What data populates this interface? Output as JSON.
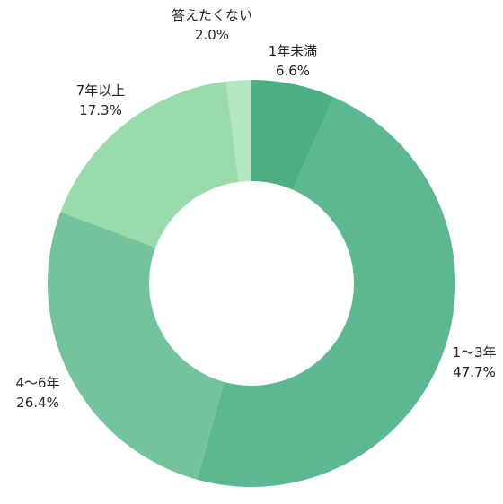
{
  "chart_data": {
    "type": "pie",
    "variant": "donut",
    "title": "",
    "slices": [
      {
        "label": "1年未満",
        "value": 6.6,
        "value_label": "6.6%",
        "color": "#4caf84"
      },
      {
        "label": "1～3年",
        "value": 47.7,
        "value_label": "47.7%",
        "color": "#5cb891"
      },
      {
        "label": "4～6年",
        "value": 26.4,
        "value_label": "26.4%",
        "color": "#73c49c"
      },
      {
        "label": "7年以上",
        "value": 17.3,
        "value_label": "17.3%",
        "color": "#99dbaa"
      },
      {
        "label": "答えたくない",
        "value": 2.0,
        "value_label": "2.0%",
        "color": "#b3e7c2"
      }
    ],
    "start": "12 o'clock",
    "direction": "clockwise"
  }
}
